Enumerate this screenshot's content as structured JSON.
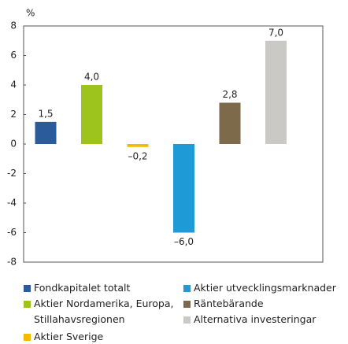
{
  "chart_data": {
    "type": "bar",
    "y_label": "%",
    "categories": [
      "Fondkapitalet totalt",
      "Aktier Nordamerika, Europa, Stillahavsregionen",
      "Aktier Sverige",
      "Aktier utvecklingsmarknader",
      "Räntebärande",
      "Alternativa investeringar"
    ],
    "values": [
      1.5,
      4.0,
      -0.2,
      -6.0,
      2.8,
      7.0
    ],
    "value_labels": [
      "1,5",
      "4,0",
      "–0,2",
      "–6,0",
      "2,8",
      "7,0"
    ],
    "colors": [
      "#2b5b9b",
      "#9cc41c",
      "#f4b900",
      "#1e9ad6",
      "#7c6a4b",
      "#cbc9c6"
    ],
    "ylim": [
      -8,
      8
    ],
    "yticks": [
      8,
      6,
      4,
      2,
      0,
      -2,
      -4,
      -6,
      -8
    ],
    "grid": false
  }
}
